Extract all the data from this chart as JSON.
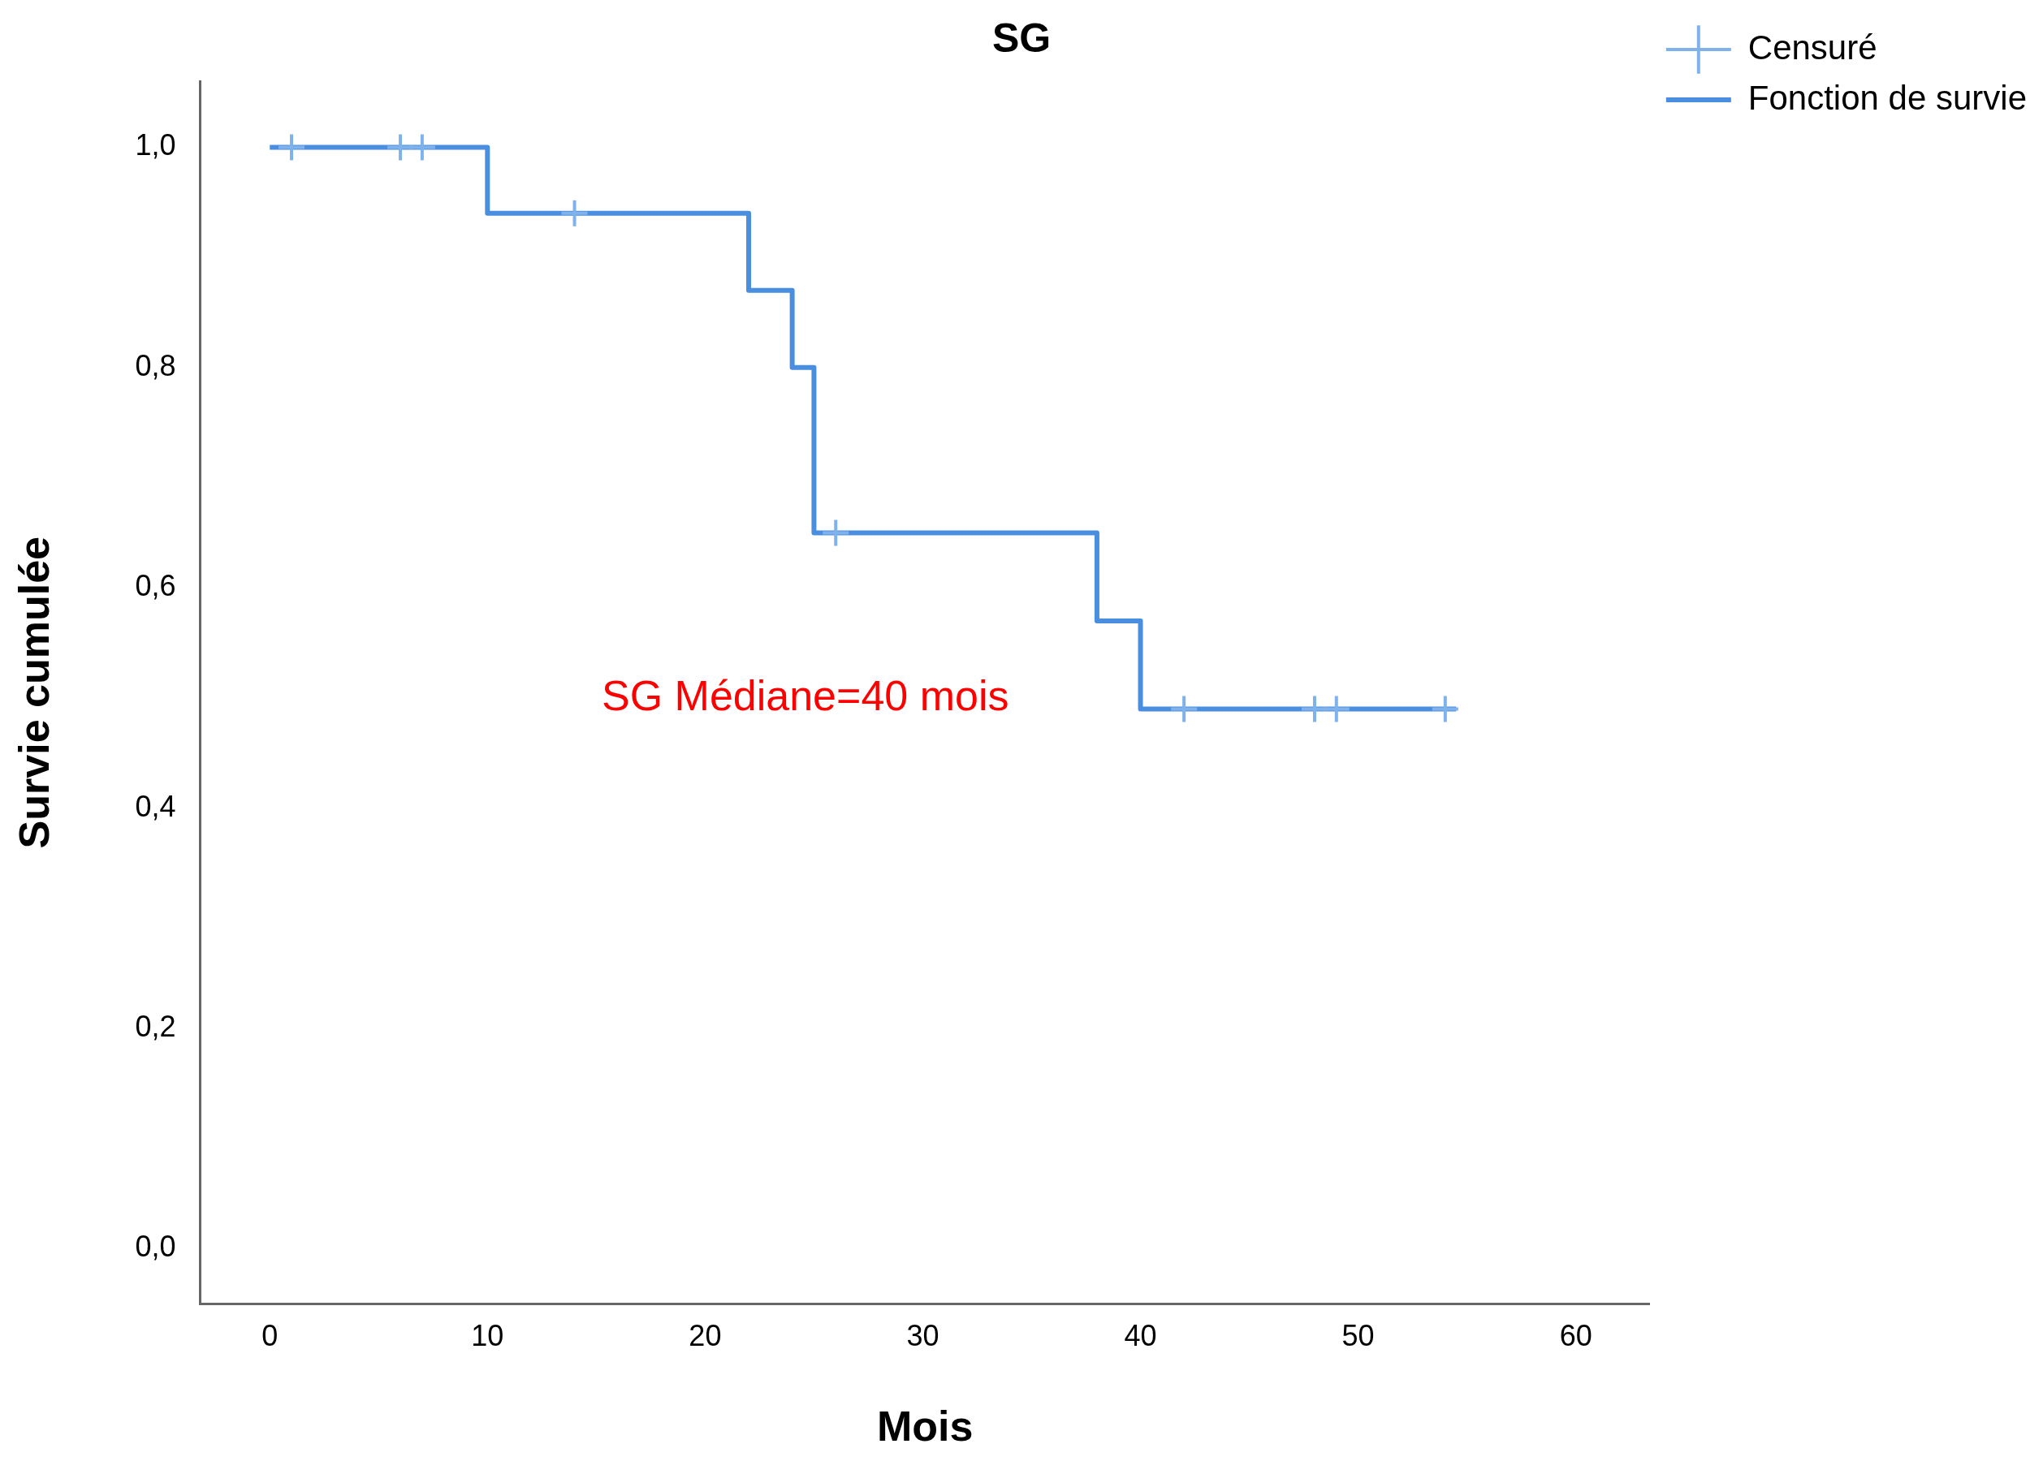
{
  "chart_data": {
    "type": "step",
    "title": "SG",
    "xlabel": "Mois",
    "ylabel": "Survie cumulée",
    "xlim": [
      -3.2,
      63.4
    ],
    "ylim": [
      -0.05,
      1.06
    ],
    "xticks": [
      0,
      10,
      20,
      30,
      40,
      50,
      60
    ],
    "yticks": [
      {
        "value": 0,
        "label": "0,0"
      },
      {
        "value": 0.2,
        "label": "0,2"
      },
      {
        "value": 0.4,
        "label": "0,4"
      },
      {
        "value": 0.6,
        "label": "0,6"
      },
      {
        "value": 0.8,
        "label": "0,8"
      },
      {
        "value": 1,
        "label": "1,0"
      }
    ],
    "grid": false,
    "legend": "top right",
    "series": [
      {
        "name": "Fonction de survie",
        "color": "#4a8ee0",
        "marker": "none",
        "x": [
          0,
          10,
          22,
          24,
          25,
          38,
          40,
          54.5
        ],
        "values": [
          1,
          0.94,
          0.87,
          0.8,
          0.65,
          0.57,
          0.49,
          0.49
        ]
      },
      {
        "name": "Censuré",
        "type": "scatter",
        "color": "#7fb2ea",
        "marker": "cross",
        "x": [
          1,
          6,
          7,
          14,
          26,
          42,
          48,
          49,
          54
        ],
        "values": [
          1,
          1,
          1,
          0.94,
          0.65,
          0.49,
          0.49,
          0.49,
          0.49
        ]
      }
    ],
    "annotations": [
      "SG Médiane=40 mois"
    ]
  }
}
